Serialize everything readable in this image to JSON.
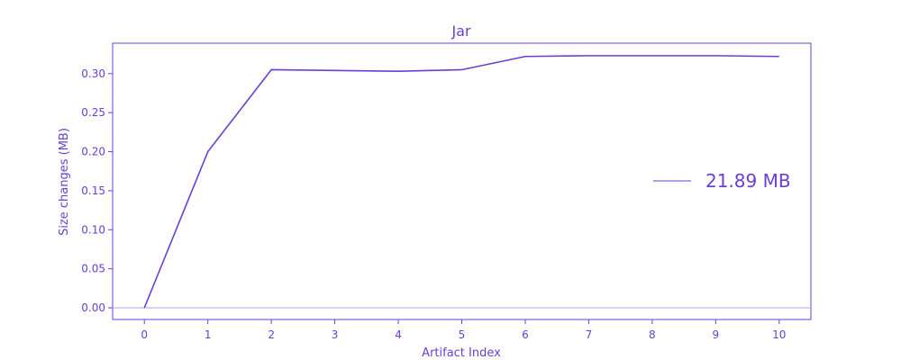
{
  "chart_data": {
    "type": "line",
    "title": "Jar",
    "xlabel": "Artifact Index",
    "ylabel": "Size changes (MB)",
    "x": [
      0,
      1,
      2,
      3,
      4,
      5,
      6,
      7,
      8,
      9,
      10
    ],
    "series": [
      {
        "name": "21.89 MB",
        "values": [
          0.0,
          0.2,
          0.305,
          0.304,
          0.303,
          0.305,
          0.322,
          0.323,
          0.323,
          0.323,
          0.322
        ]
      }
    ],
    "xlim": [
      -0.5,
      10.5
    ],
    "ylim": [
      -0.015,
      0.339
    ],
    "xticks": [
      0,
      1,
      2,
      3,
      4,
      5,
      6,
      7,
      8,
      9,
      10
    ],
    "yticks": [
      0.0,
      0.05,
      0.1,
      0.15,
      0.2,
      0.25,
      0.3
    ],
    "ytick_labels": [
      "0.00",
      "0.05",
      "0.10",
      "0.15",
      "0.20",
      "0.25",
      "0.30"
    ],
    "reference_line_y": 0.0,
    "grid": false,
    "legend_position": "center-right",
    "colors": {
      "primary": "#6a3fd6",
      "reference": "#b4a4ee"
    }
  }
}
